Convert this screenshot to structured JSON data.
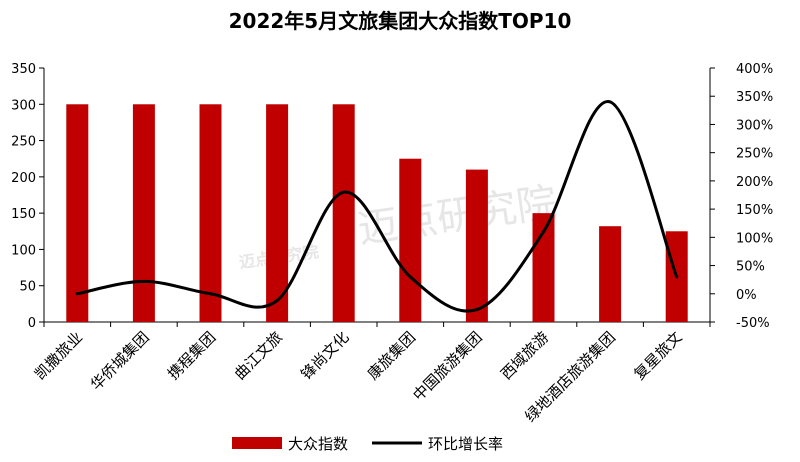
{
  "chart_data": {
    "type": "bar",
    "title": "2022年5月文旅集团大众指数TOP10",
    "watermark": "迈点研究院",
    "categories": [
      "凯撒旅业",
      "华侨城集团",
      "携程集团",
      "曲江文旅",
      "锋尚文化",
      "康旅集团",
      "中国旅游集团",
      "西域旅游",
      "绿地酒店旅游集团",
      "复星旅文"
    ],
    "bar_series": {
      "name": "大众指数",
      "color": "#c00000",
      "values": [
        300,
        300,
        300,
        300,
        300,
        225,
        210,
        150,
        132,
        125
      ]
    },
    "line_series": {
      "name": "环比增长率",
      "color": "#000000",
      "values": [
        0,
        22,
        0,
        -12,
        180,
        30,
        -28,
        110,
        340,
        30
      ]
    },
    "y_left": {
      "min": 0,
      "max": 350,
      "ticks": [
        "0",
        "50",
        "100",
        "150",
        "200",
        "250",
        "300",
        "350"
      ]
    },
    "y_right": {
      "min": -50,
      "max": 400,
      "ticks": [
        "-50%",
        "0%",
        "50%",
        "100%",
        "150%",
        "200%",
        "250%",
        "300%",
        "350%",
        "400%"
      ]
    },
    "grid": false,
    "legend_position": "bottom"
  }
}
